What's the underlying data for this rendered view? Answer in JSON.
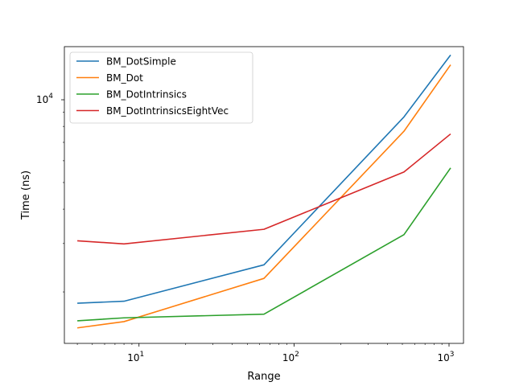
{
  "chart_data": {
    "type": "line",
    "title": "",
    "xlabel": "Range",
    "ylabel": "Time (ns)",
    "x_scale": "log",
    "y_scale": "log",
    "xlim": [
      3.3,
      1240
    ],
    "ylim": [
      1300,
      15600
    ],
    "grid": false,
    "legend_position": "top-left",
    "x_ticks": [
      {
        "value": 10,
        "base": "10",
        "exp": "1"
      },
      {
        "value": 100,
        "base": "10",
        "exp": "2"
      },
      {
        "value": 1000,
        "base": "10",
        "exp": "3"
      }
    ],
    "y_ticks": [
      {
        "value": 10000,
        "base": "10",
        "exp": "4"
      }
    ],
    "x": [
      4,
      8,
      64,
      512,
      1024
    ],
    "series": [
      {
        "name": "BM_DotSimple",
        "color": "#1f77b4",
        "values": [
          1820,
          1850,
          2510,
          8660,
          14550
        ]
      },
      {
        "name": "BM_Dot",
        "color": "#ff7f0e",
        "values": [
          1480,
          1560,
          2240,
          7680,
          13400
        ]
      },
      {
        "name": "BM_DotIntrinsics",
        "color": "#2ca02c",
        "values": [
          1570,
          1610,
          1660,
          3230,
          5650
        ]
      },
      {
        "name": "BM_DotIntrinsicsEightVec",
        "color": "#d62728",
        "values": [
          3070,
          2990,
          3380,
          5460,
          7510
        ]
      }
    ]
  }
}
